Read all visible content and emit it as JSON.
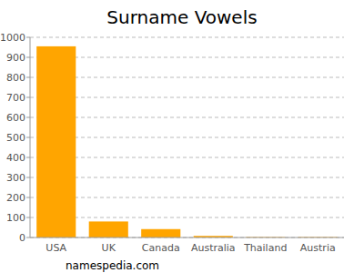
{
  "chart_data": {
    "type": "bar",
    "title": "Surname Vowels",
    "categories": [
      "USA",
      "UK",
      "Canada",
      "Australia",
      "Thailand",
      "Austria"
    ],
    "values": [
      955,
      80,
      42,
      8,
      2,
      2
    ],
    "color": "#ffa500",
    "ylim": [
      0,
      1000
    ],
    "yticks": [
      0,
      100,
      200,
      300,
      400,
      500,
      600,
      700,
      800,
      900,
      1000
    ],
    "grid": true,
    "annotation": "namespedia.com"
  }
}
